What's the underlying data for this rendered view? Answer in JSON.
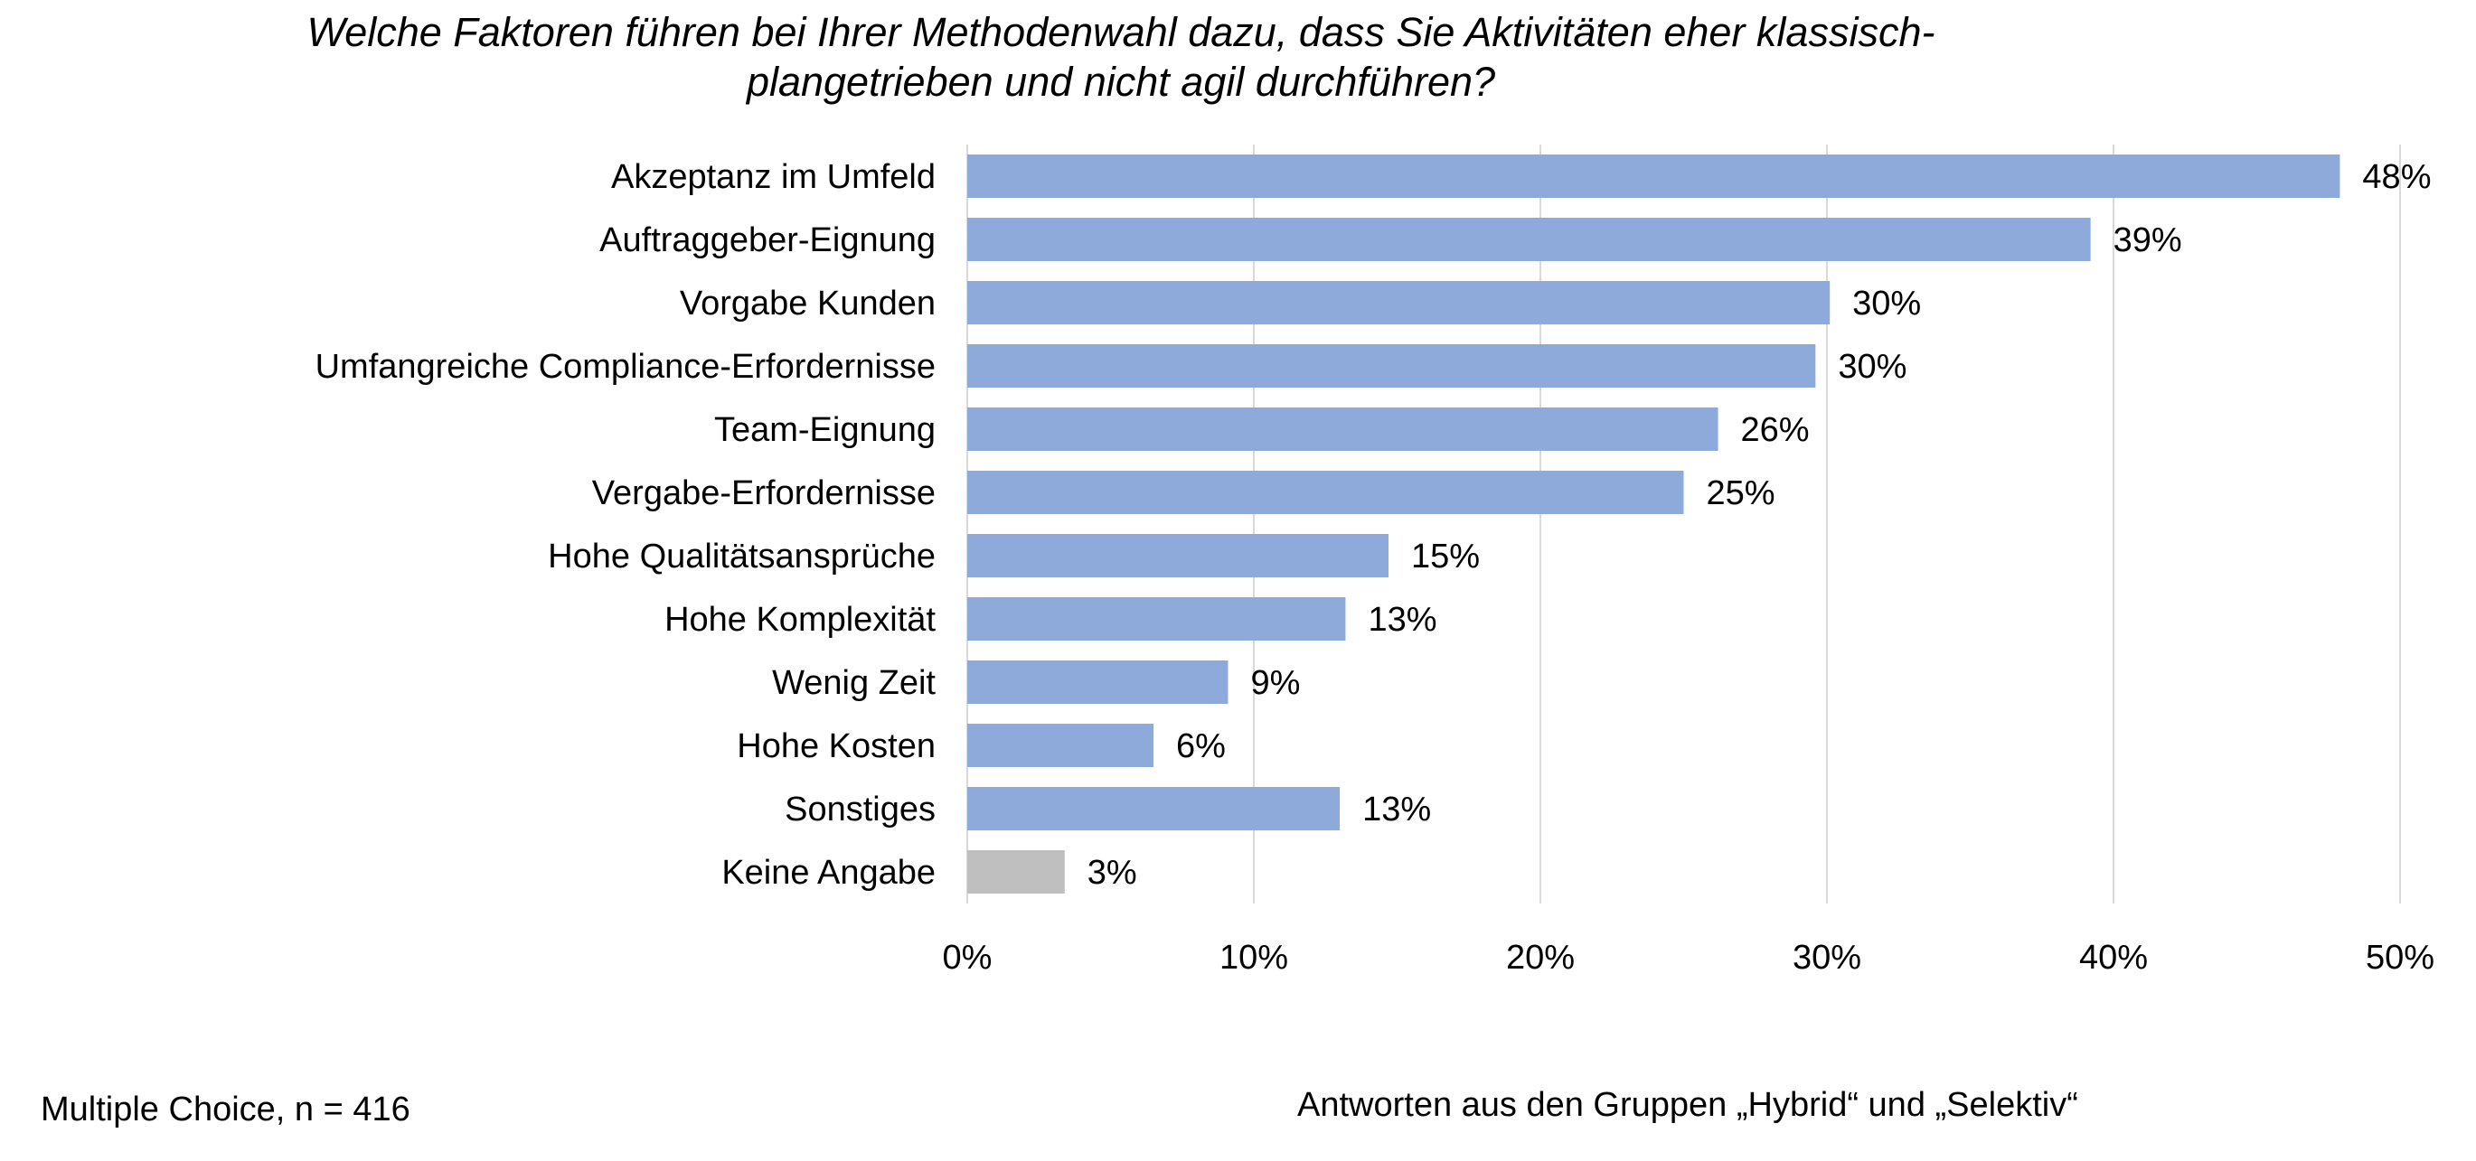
{
  "chart_data": {
    "type": "bar",
    "orientation": "horizontal",
    "title_lines": [
      "Welche Faktoren führen bei Ihrer Methodenwahl dazu, dass Sie Aktivitäten eher klassisch-",
      "plangetrieben und nicht agil durchführen?"
    ],
    "categories": [
      "Akzeptanz im Umfeld",
      "Auftraggeber-Eignung",
      "Vorgabe Kunden",
      "Umfangreiche Compliance-Erfordernisse",
      "Team-Eignung",
      "Vergabe-Erfordernisse",
      "Hohe Qualitätsansprüche",
      "Hohe Komplexität",
      "Wenig Zeit",
      "Hohe Kosten",
      "Sonstiges",
      "Keine Angabe"
    ],
    "values": [
      47.9,
      39.2,
      30.1,
      29.6,
      26.2,
      25.0,
      14.7,
      13.2,
      9.1,
      6.5,
      13.0,
      3.4
    ],
    "value_labels": [
      "48%",
      "39%",
      "30%",
      "30%",
      "26%",
      "25%",
      "15%",
      "13%",
      "9%",
      "6%",
      "13%",
      "3%"
    ],
    "bar_colors": [
      "#8eaadb",
      "#8eaadb",
      "#8eaadb",
      "#8eaadb",
      "#8eaadb",
      "#8eaadb",
      "#8eaadb",
      "#8eaadb",
      "#8eaadb",
      "#8eaadb",
      "#8eaadb",
      "#bfbfbf"
    ],
    "xlim": [
      0,
      50
    ],
    "xticks": [
      0,
      10,
      20,
      30,
      40,
      50
    ],
    "xtick_labels": [
      "0%",
      "10%",
      "20%",
      "30%",
      "40%",
      "50%"
    ],
    "grid": true,
    "gridline_color": "#d9d9d9"
  },
  "notes": {
    "left": "Multiple Choice, n = 416",
    "right": "Antworten aus den Gruppen „Hybrid“ und „Selektiv“"
  }
}
